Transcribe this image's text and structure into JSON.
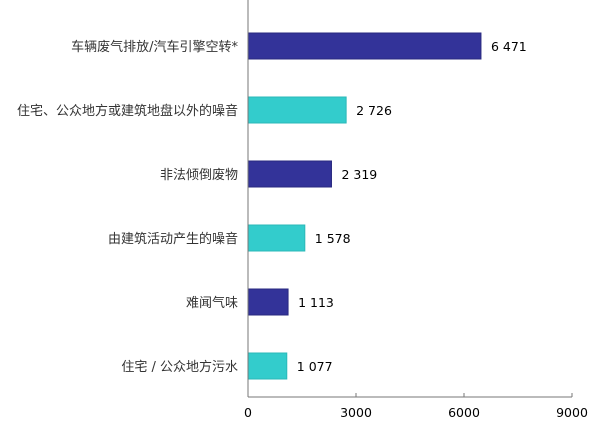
{
  "chart_data": {
    "type": "bar",
    "orientation": "horizontal",
    "categories": [
      "车辆废气排放/汽车引擎空转*",
      "住宅、公众地方或建筑地盘以外的噪音",
      "非法倾倒废物",
      "由建筑活动产生的噪音",
      "难闻气味",
      "住宅 / 公众地方污水"
    ],
    "values": [
      6471,
      2726,
      2319,
      1578,
      1113,
      1077
    ],
    "data_labels": [
      "6 471",
      "2 726",
      "2 319",
      "1 578",
      "1 113",
      "1 077"
    ],
    "bar_colors": [
      "#333399",
      "#33CCCC",
      "#333399",
      "#33CCCC",
      "#333399",
      "#33CCCC"
    ],
    "xlim": [
      0,
      9000
    ],
    "xticks": [
      0,
      3000,
      6000,
      9000
    ],
    "xtick_labels": [
      "0",
      "3000",
      "6000",
      "9000"
    ],
    "grid": false,
    "legend": "none"
  }
}
